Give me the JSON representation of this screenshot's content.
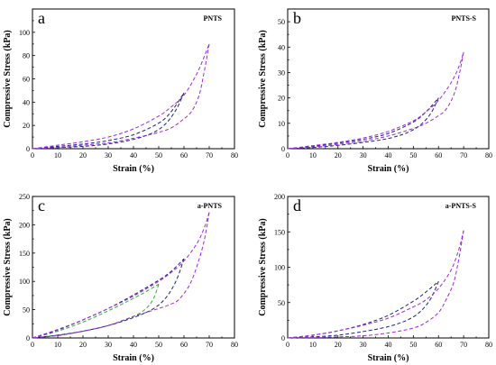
{
  "chart_data": [
    {
      "type": "line",
      "panel_letter": "a",
      "panel_label": "PNTS",
      "xlabel": "Strain (%)",
      "ylabel": "Compressive Stress (kPa)",
      "xlim": [
        0,
        80
      ],
      "ylim": [
        0,
        120
      ],
      "x_ticks": [
        0,
        10,
        20,
        30,
        40,
        50,
        60,
        70,
        80
      ],
      "y_ticks": [
        0,
        20,
        40,
        60,
        80,
        100
      ],
      "grid": false,
      "series": [
        {
          "color": "#1a237e",
          "loading": [
            [
              0,
              0
            ],
            [
              10,
              2
            ],
            [
              20,
              4
            ],
            [
              30,
              7
            ],
            [
              40,
              12
            ],
            [
              50,
              22
            ],
            [
              55,
              32
            ],
            [
              60,
              48
            ]
          ],
          "unloading": [
            [
              60,
              48
            ],
            [
              57,
              34
            ],
            [
              53,
              22
            ],
            [
              48,
              14
            ],
            [
              40,
              8
            ],
            [
              30,
              4
            ],
            [
              20,
              2
            ],
            [
              10,
              1
            ],
            [
              0,
              0
            ]
          ]
        },
        {
          "color": "#9c27e0",
          "loading": [
            [
              0,
              0
            ],
            [
              10,
              3
            ],
            [
              20,
              6
            ],
            [
              30,
              10
            ],
            [
              40,
              17
            ],
            [
              50,
              28
            ],
            [
              55,
              36
            ],
            [
              60,
              46
            ],
            [
              65,
              64
            ],
            [
              68,
              79
            ],
            [
              70,
              90
            ]
          ],
          "unloading": [
            [
              70,
              90
            ],
            [
              68,
              66
            ],
            [
              66,
              46
            ],
            [
              63,
              32
            ],
            [
              59,
              24
            ],
            [
              55,
              18
            ],
            [
              50,
              14
            ],
            [
              40,
              9
            ],
            [
              30,
              5
            ],
            [
              20,
              3
            ],
            [
              10,
              1
            ],
            [
              0,
              0
            ]
          ]
        }
      ]
    },
    {
      "type": "line",
      "panel_letter": "b",
      "panel_label": "PNTS-S",
      "xlabel": "Strain (%)",
      "ylabel": "Compressive Stress (kPa)",
      "xlim": [
        0,
        80
      ],
      "ylim": [
        0,
        55
      ],
      "x_ticks": [
        0,
        10,
        20,
        30,
        40,
        50,
        60,
        70,
        80
      ],
      "y_ticks": [
        0,
        10,
        20,
        30,
        40,
        50
      ],
      "grid": false,
      "series": [
        {
          "color": "#1a237e",
          "loading": [
            [
              0,
              0
            ],
            [
              10,
              1
            ],
            [
              20,
              2.2
            ],
            [
              30,
              3.7
            ],
            [
              40,
              6
            ],
            [
              50,
              10.5
            ],
            [
              55,
              14.5
            ],
            [
              60,
              20
            ]
          ],
          "unloading": [
            [
              60,
              20
            ],
            [
              57,
              14
            ],
            [
              53,
              9.5
            ],
            [
              48,
              6.5
            ],
            [
              40,
              4
            ],
            [
              30,
              2.5
            ],
            [
              20,
              1.3
            ],
            [
              10,
              0.5
            ],
            [
              0,
              0
            ]
          ]
        },
        {
          "color": "#9c27e0",
          "loading": [
            [
              0,
              0
            ],
            [
              10,
              1.2
            ],
            [
              20,
              2.5
            ],
            [
              30,
              4.2
            ],
            [
              40,
              6.8
            ],
            [
              50,
              11
            ],
            [
              55,
              14.5
            ],
            [
              60,
              19
            ],
            [
              65,
              26
            ],
            [
              68,
              32
            ],
            [
              70,
              38
            ]
          ],
          "unloading": [
            [
              70,
              38
            ],
            [
              68,
              28
            ],
            [
              66,
              21
            ],
            [
              63,
              15.5
            ],
            [
              60,
              13
            ],
            [
              55,
              10
            ],
            [
              50,
              8
            ],
            [
              40,
              5
            ],
            [
              30,
              3
            ],
            [
              20,
              1.7
            ],
            [
              10,
              0.7
            ],
            [
              0,
              0
            ]
          ]
        }
      ]
    },
    {
      "type": "line",
      "panel_letter": "c",
      "panel_label": "a-PNTS",
      "xlabel": "Strain (%)",
      "ylabel": "Compressive Stress (kPa)",
      "xlim": [
        0,
        80
      ],
      "ylim": [
        0,
        250
      ],
      "x_ticks": [
        0,
        10,
        20,
        30,
        40,
        50,
        60,
        70,
        80
      ],
      "y_ticks": [
        0,
        50,
        100,
        150,
        200,
        250
      ],
      "grid": false,
      "series": [
        {
          "color": "#33aa33",
          "loading": [
            [
              0,
              0
            ],
            [
              10,
              12
            ],
            [
              20,
              28
            ],
            [
              30,
              48
            ],
            [
              40,
              70
            ],
            [
              45,
              82
            ],
            [
              50,
              95
            ]
          ],
          "unloading": [
            [
              50,
              95
            ],
            [
              48,
              70
            ],
            [
              45,
              52
            ],
            [
              40,
              38
            ],
            [
              30,
              22
            ],
            [
              20,
              12
            ],
            [
              10,
              5
            ],
            [
              0,
              0
            ]
          ]
        },
        {
          "color": "#1a237e",
          "loading": [
            [
              0,
              0
            ],
            [
              10,
              14
            ],
            [
              20,
              32
            ],
            [
              30,
              52
            ],
            [
              40,
              76
            ],
            [
              50,
              102
            ],
            [
              55,
              118
            ],
            [
              60,
              140
            ]
          ],
          "unloading": [
            [
              60,
              140
            ],
            [
              57,
              102
            ],
            [
              53,
              72
            ],
            [
              48,
              52
            ],
            [
              40,
              36
            ],
            [
              30,
              22
            ],
            [
              20,
              12
            ],
            [
              10,
              5
            ],
            [
              0,
              0
            ]
          ]
        },
        {
          "color": "#9c27e0",
          "loading": [
            [
              0,
              0
            ],
            [
              10,
              15
            ],
            [
              20,
              32
            ],
            [
              30,
              52
            ],
            [
              40,
              74
            ],
            [
              50,
              100
            ],
            [
              55,
              116
            ],
            [
              60,
              136
            ],
            [
              65,
              166
            ],
            [
              68,
              194
            ],
            [
              70,
              222
            ]
          ],
          "unloading": [
            [
              70,
              222
            ],
            [
              68,
              172
            ],
            [
              65,
              125
            ],
            [
              62,
              92
            ],
            [
              58,
              68
            ],
            [
              55,
              60
            ],
            [
              50,
              52
            ],
            [
              40,
              38
            ],
            [
              30,
              22
            ],
            [
              20,
              12
            ],
            [
              10,
              4
            ],
            [
              0,
              0
            ]
          ]
        }
      ]
    },
    {
      "type": "line",
      "panel_letter": "d",
      "panel_label": "a-PNTS-S",
      "xlabel": "Strain (%)",
      "ylabel": "Compressive Stress (kPa)",
      "xlim": [
        0,
        80
      ],
      "ylim": [
        0,
        200
      ],
      "x_ticks": [
        0,
        10,
        20,
        30,
        40,
        50,
        60,
        70,
        80
      ],
      "y_ticks": [
        0,
        50,
        100,
        150,
        200
      ],
      "grid": false,
      "series": [
        {
          "color": "#1a237e",
          "loading": [
            [
              0,
              0
            ],
            [
              10,
              4
            ],
            [
              20,
              10
            ],
            [
              30,
              19
            ],
            [
              40,
              32
            ],
            [
              50,
              52
            ],
            [
              55,
              65
            ],
            [
              60,
              80
            ]
          ],
          "unloading": [
            [
              60,
              80
            ],
            [
              57,
              56
            ],
            [
              53,
              38
            ],
            [
              48,
              26
            ],
            [
              40,
              16
            ],
            [
              30,
              9
            ],
            [
              20,
              4
            ],
            [
              10,
              1.5
            ],
            [
              0,
              0
            ]
          ]
        },
        {
          "color": "#9c27e0",
          "loading": [
            [
              0,
              0
            ],
            [
              10,
              4
            ],
            [
              20,
              10
            ],
            [
              30,
              18
            ],
            [
              40,
              28
            ],
            [
              50,
              44
            ],
            [
              55,
              54
            ],
            [
              60,
              70
            ],
            [
              65,
              96
            ],
            [
              68,
              124
            ],
            [
              70,
              152
            ]
          ],
          "unloading": [
            [
              70,
              152
            ],
            [
              68,
              110
            ],
            [
              66,
              78
            ],
            [
              63,
              54
            ],
            [
              60,
              36
            ],
            [
              55,
              22
            ],
            [
              50,
              14
            ],
            [
              40,
              7
            ],
            [
              30,
              3
            ],
            [
              20,
              1.5
            ],
            [
              10,
              0.5
            ],
            [
              0,
              0
            ]
          ]
        }
      ]
    }
  ]
}
